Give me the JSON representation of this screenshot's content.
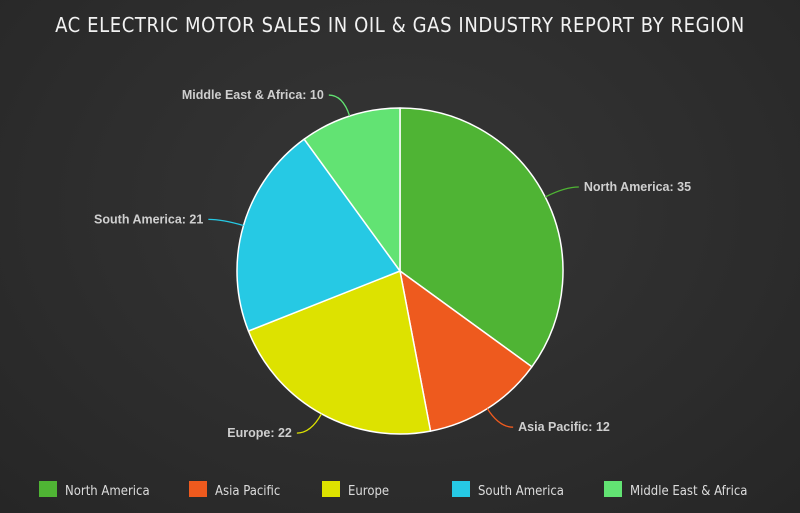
{
  "chart_data": {
    "type": "pie",
    "title": "AC ELECTRIC MOTOR SALES IN OIL & GAS INDUSTRY REPORT BY REGION",
    "legend_position": "bottom",
    "slices": [
      {
        "label": "North America",
        "value": 35,
        "color": "#4fb434",
        "legend": "North America"
      },
      {
        "label": "Asia Pacific",
        "value": 12,
        "color": "#ee5a1e",
        "legend": "Asia Pacific"
      },
      {
        "label": "Europe",
        "value": 22,
        "color": "#dde200",
        "legend": "Europe"
      },
      {
        "label": "South America",
        "value": 21,
        "color": "#26c9e4",
        "legend": "South America"
      },
      {
        "label": "Middle East & Africa",
        "value": 10,
        "color": "#62e373",
        "legend": "Middle East & Africa"
      }
    ]
  }
}
